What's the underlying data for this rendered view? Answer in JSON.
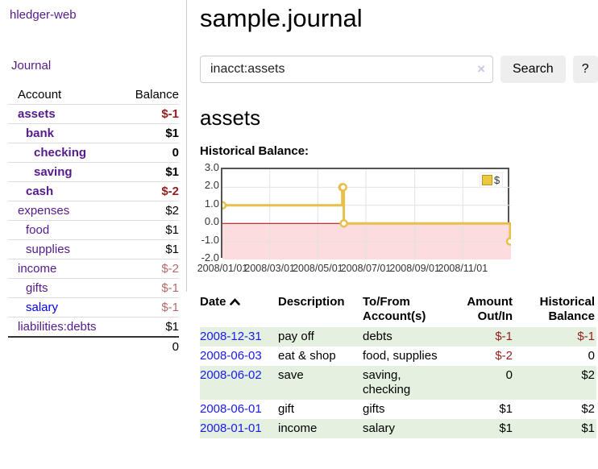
{
  "sidebar": {
    "app_title": "hledger-web",
    "journal_link": "Journal",
    "accounts_header": {
      "account": "Account",
      "balance": "Balance"
    },
    "accounts": [
      {
        "name": "assets",
        "balance": "$-1"
      },
      {
        "name": "bank",
        "balance": "$1"
      },
      {
        "name": "checking",
        "balance": "0"
      },
      {
        "name": "saving",
        "balance": "$1"
      },
      {
        "name": "cash",
        "balance": "$-2"
      },
      {
        "name": "expenses",
        "balance": "$2"
      },
      {
        "name": "food",
        "balance": "$1"
      },
      {
        "name": "supplies",
        "balance": "$1"
      },
      {
        "name": "income",
        "balance": "$-2"
      },
      {
        "name": "gifts",
        "balance": "$-1"
      },
      {
        "name": "salary",
        "balance": "$-1"
      },
      {
        "name": "liabilities:debts",
        "balance": "$1"
      }
    ],
    "total": "0"
  },
  "header": {
    "title": "sample.journal"
  },
  "search": {
    "value": "inacct:assets",
    "clear_icon": "×",
    "button_label": "Search",
    "help_label": "?"
  },
  "main": {
    "account_heading": "assets",
    "chart_title": "Historical Balance:"
  },
  "chart_data": {
    "type": "line",
    "step": true,
    "title": "Historical Balance:",
    "legend": [
      {
        "name": "$",
        "color": "#ecc83f"
      }
    ],
    "points": [
      {
        "date": "2008-01-01",
        "value": 1
      },
      {
        "date": "2008-06-01",
        "value": 2
      },
      {
        "date": "2008-06-02",
        "value": 2
      },
      {
        "date": "2008-06-03",
        "value": 0
      },
      {
        "date": "2008-12-31",
        "value": -1
      }
    ],
    "xlim": [
      "2008-01-01",
      "2009-01-01"
    ],
    "ylim": [
      -2,
      3
    ],
    "y_ticks": [
      {
        "value": 3,
        "label": "3.0"
      },
      {
        "value": 2,
        "label": "2.0"
      },
      {
        "value": 1,
        "label": "1.0"
      },
      {
        "value": 0,
        "label": "0.0"
      },
      {
        "value": -1,
        "label": "-1.0"
      },
      {
        "value": -2,
        "label": "-2.0"
      }
    ],
    "x_ticks": [
      {
        "date": "2008-01-01",
        "label": "2008/01/01"
      },
      {
        "date": "2008-03-01",
        "label": "2008/03/01"
      },
      {
        "date": "2008-05-01",
        "label": "2008/05/01"
      },
      {
        "date": "2008-07-01",
        "label": "2008/07/01"
      },
      {
        "date": "2008-09-01",
        "label": "2008/09/01"
      },
      {
        "date": "2008-11-01",
        "label": "2008/11/01"
      }
    ],
    "line_color": "#e7bf4a",
    "zero_line_color": "#a40000",
    "negative_region_color": "#fcdcdc",
    "grid_color": "#e2e2e2"
  },
  "register": {
    "headers": {
      "date": "Date",
      "description": "Description",
      "tofrom": "To/From Account(s)",
      "amount": "Amount Out/In",
      "balance": "Historical Balance"
    },
    "rows": [
      {
        "date": "2008-12-31",
        "description": "pay off",
        "accounts": "debts",
        "amount": "$-1",
        "balance": "$-1"
      },
      {
        "date": "2008-06-03",
        "description": "eat & shop",
        "accounts": "food, supplies",
        "amount": "$-2",
        "balance": "0"
      },
      {
        "date": "2008-06-02",
        "description": "save",
        "accounts": "saving, checking",
        "amount": "0",
        "balance": "$2"
      },
      {
        "date": "2008-06-01",
        "description": "gift",
        "accounts": "gifts",
        "amount": "$1",
        "balance": "$2"
      },
      {
        "date": "2008-01-01",
        "description": "income",
        "accounts": "salary",
        "amount": "$1",
        "balance": "$1"
      }
    ]
  }
}
